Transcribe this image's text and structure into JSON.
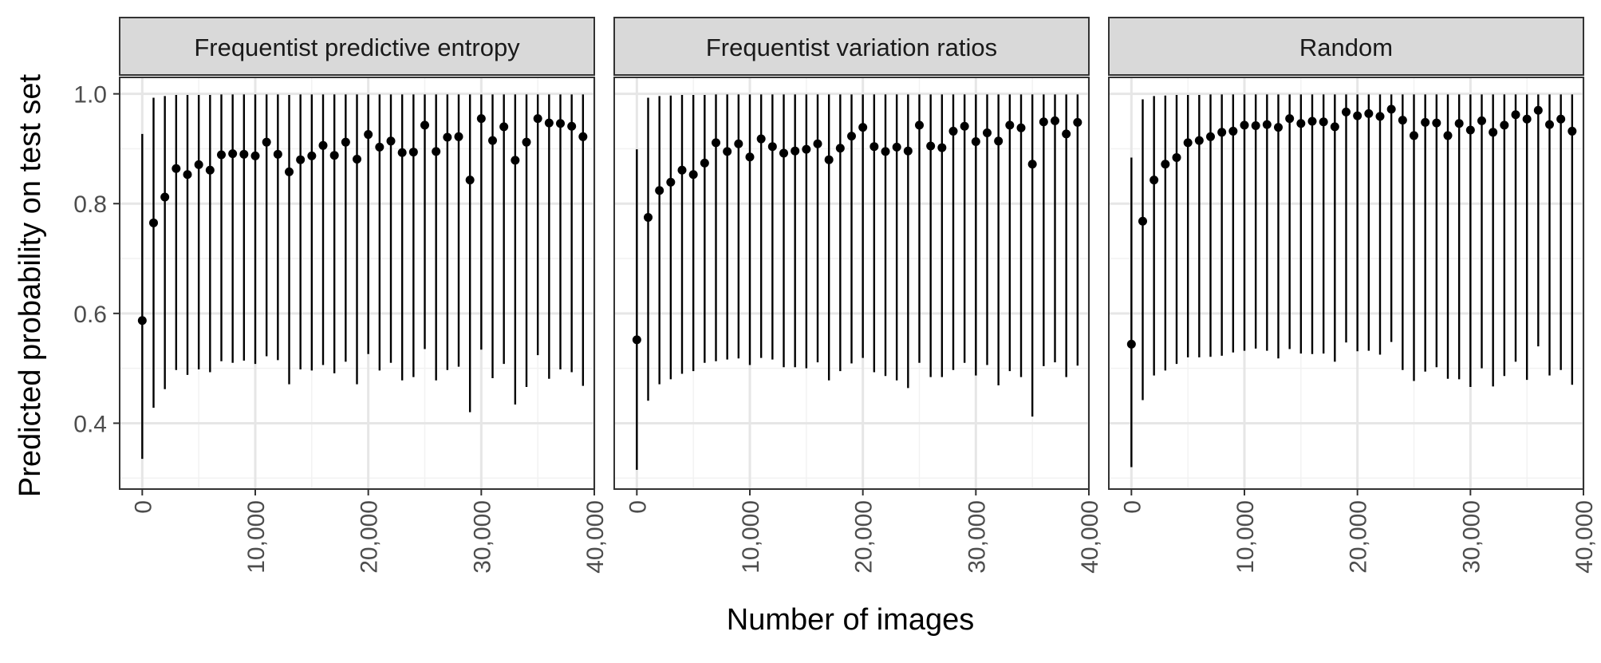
{
  "chart_data": {
    "type": "scatter",
    "xlabel": "Number of images",
    "ylabel": "Predicted probability on test set",
    "xlim": [
      -2000,
      40000
    ],
    "ylim": [
      0.28,
      1.03
    ],
    "x_ticks": [
      0,
      10000,
      20000,
      30000,
      40000
    ],
    "x_tick_labels": [
      "0",
      "10,000",
      "20,000",
      "30,000",
      "40,000"
    ],
    "y_ticks": [
      0.4,
      0.6,
      0.8,
      1.0
    ],
    "y_tick_labels": [
      "0.4",
      "0.6",
      "0.8",
      "1.0"
    ],
    "grid": true,
    "x": [
      0,
      1000,
      2000,
      3000,
      4000,
      5000,
      6000,
      7000,
      8000,
      9000,
      10000,
      11000,
      12000,
      13000,
      14000,
      15000,
      16000,
      17000,
      18000,
      19000,
      20000,
      21000,
      22000,
      23000,
      24000,
      25000,
      26000,
      27000,
      28000,
      29000,
      30000,
      31000,
      32000,
      33000,
      34000,
      35000,
      36000,
      37000,
      38000,
      39000
    ],
    "panels": [
      {
        "title": "Frequentist predictive entropy",
        "y": [
          0.587,
          0.765,
          0.812,
          0.864,
          0.853,
          0.871,
          0.861,
          0.889,
          0.891,
          0.89,
          0.887,
          0.912,
          0.89,
          0.858,
          0.88,
          0.887,
          0.906,
          0.888,
          0.912,
          0.881,
          0.926,
          0.903,
          0.914,
          0.893,
          0.894,
          0.943,
          0.895,
          0.921,
          0.922,
          0.843,
          0.955,
          0.915,
          0.94,
          0.879,
          0.912,
          0.955,
          0.947,
          0.946,
          0.941,
          0.922
        ],
        "lower": [
          0.335,
          0.428,
          0.462,
          0.497,
          0.488,
          0.498,
          0.493,
          0.513,
          0.51,
          0.514,
          0.508,
          0.522,
          0.515,
          0.471,
          0.498,
          0.496,
          0.506,
          0.491,
          0.512,
          0.471,
          0.526,
          0.496,
          0.51,
          0.478,
          0.484,
          0.535,
          0.478,
          0.497,
          0.503,
          0.42,
          0.534,
          0.482,
          0.508,
          0.434,
          0.466,
          0.524,
          0.481,
          0.498,
          0.493,
          0.468
        ],
        "upper": [
          0.927,
          0.993,
          0.996,
          0.998,
          0.998,
          0.998,
          0.998,
          0.999,
          0.999,
          0.999,
          0.999,
          0.999,
          0.999,
          0.998,
          0.999,
          0.999,
          0.999,
          0.999,
          0.999,
          0.999,
          0.999,
          0.999,
          0.999,
          0.999,
          0.999,
          0.999,
          0.999,
          0.999,
          0.999,
          0.999,
          0.999,
          0.999,
          0.999,
          0.999,
          0.999,
          0.999,
          0.999,
          0.999,
          0.999,
          0.999
        ]
      },
      {
        "title": "Frequentist variation ratios",
        "y": [
          0.552,
          0.775,
          0.824,
          0.839,
          0.861,
          0.853,
          0.874,
          0.911,
          0.895,
          0.909,
          0.885,
          0.918,
          0.904,
          0.892,
          0.896,
          0.899,
          0.909,
          0.88,
          0.901,
          0.923,
          0.939,
          0.904,
          0.895,
          0.903,
          0.896,
          0.943,
          0.905,
          0.902,
          0.932,
          0.941,
          0.913,
          0.929,
          0.914,
          0.943,
          0.938,
          0.872,
          0.949,
          0.951,
          0.927,
          0.948
        ],
        "lower": [
          0.315,
          0.441,
          0.471,
          0.48,
          0.49,
          0.495,
          0.51,
          0.513,
          0.516,
          0.518,
          0.506,
          0.519,
          0.516,
          0.502,
          0.502,
          0.5,
          0.511,
          0.478,
          0.495,
          0.509,
          0.519,
          0.493,
          0.486,
          0.478,
          0.464,
          0.51,
          0.484,
          0.484,
          0.497,
          0.51,
          0.487,
          0.506,
          0.469,
          0.495,
          0.484,
          0.412,
          0.504,
          0.511,
          0.484,
          0.505
        ],
        "upper": [
          0.899,
          0.993,
          0.996,
          0.997,
          0.998,
          0.998,
          0.998,
          0.999,
          0.999,
          0.999,
          0.999,
          0.999,
          0.999,
          0.999,
          0.999,
          0.999,
          0.999,
          0.999,
          0.999,
          0.999,
          0.999,
          0.999,
          0.999,
          0.999,
          0.999,
          0.999,
          0.999,
          0.999,
          0.999,
          0.999,
          0.999,
          0.999,
          0.999,
          0.999,
          0.999,
          0.999,
          0.999,
          0.999,
          0.999,
          0.999
        ]
      },
      {
        "title": "Random",
        "y": [
          0.544,
          0.768,
          0.843,
          0.872,
          0.884,
          0.911,
          0.915,
          0.922,
          0.93,
          0.932,
          0.943,
          0.942,
          0.944,
          0.939,
          0.955,
          0.946,
          0.95,
          0.949,
          0.94,
          0.967,
          0.96,
          0.964,
          0.959,
          0.972,
          0.952,
          0.924,
          0.948,
          0.947,
          0.924,
          0.946,
          0.934,
          0.951,
          0.93,
          0.943,
          0.962,
          0.954,
          0.97,
          0.944,
          0.954,
          0.932
        ],
        "lower": [
          0.32,
          0.442,
          0.487,
          0.496,
          0.508,
          0.52,
          0.52,
          0.521,
          0.523,
          0.529,
          0.532,
          0.536,
          0.532,
          0.518,
          0.535,
          0.527,
          0.526,
          0.527,
          0.512,
          0.547,
          0.531,
          0.532,
          0.525,
          0.548,
          0.497,
          0.477,
          0.494,
          0.502,
          0.481,
          0.48,
          0.466,
          0.5,
          0.467,
          0.486,
          0.512,
          0.479,
          0.54,
          0.487,
          0.497,
          0.47
        ],
        "upper": [
          0.884,
          0.99,
          0.996,
          0.997,
          0.998,
          0.998,
          0.998,
          0.999,
          0.999,
          0.999,
          0.999,
          0.999,
          0.999,
          0.999,
          0.999,
          0.999,
          0.999,
          0.999,
          0.999,
          0.999,
          0.999,
          0.999,
          0.999,
          0.999,
          0.999,
          0.999,
          0.999,
          0.999,
          0.999,
          0.999,
          0.999,
          0.999,
          0.999,
          0.999,
          0.999,
          0.999,
          0.999,
          0.999,
          0.999,
          0.999
        ]
      }
    ]
  },
  "colors": {
    "point": "#000000",
    "strip_fill": "#d9d9d9",
    "strip_border": "#333333",
    "panel_border": "#333333",
    "grid_major": "#e6e6e6",
    "grid_minor": "#f2f2f2",
    "tick_text": "#4d4d4d",
    "axis_title": "#000000"
  }
}
